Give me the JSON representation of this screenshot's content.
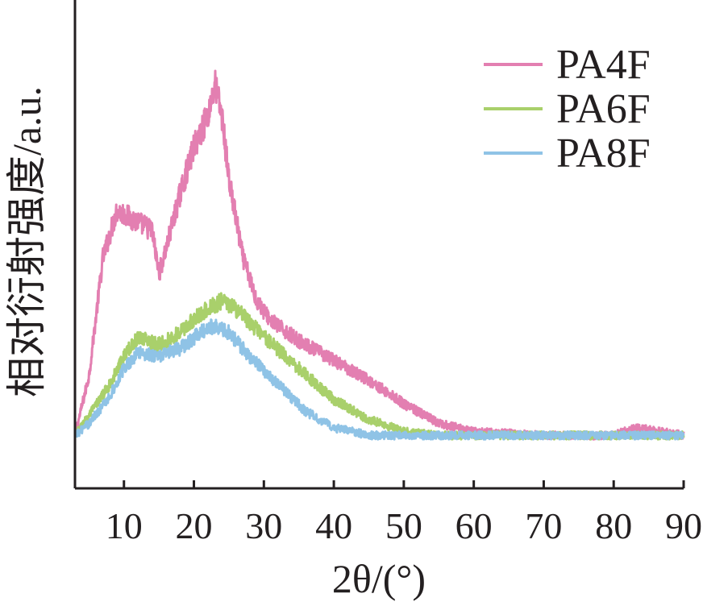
{
  "chart_data": {
    "type": "line",
    "xlabel": "2θ/(°)",
    "ylabel": "相对衍射强度/a.u.",
    "xlim": [
      3,
      90
    ],
    "ylim": [
      0,
      100
    ],
    "x_ticks": [
      10,
      20,
      30,
      40,
      50,
      60,
      70,
      80,
      90
    ],
    "y_ticks": [],
    "grid": false,
    "legend_position": "top-right",
    "series": [
      {
        "name": "PA4F",
        "color": "#e37fb1",
        "points": [
          [
            3,
            3
          ],
          [
            5,
            18
          ],
          [
            7,
            48
          ],
          [
            9,
            60
          ],
          [
            11,
            58
          ],
          [
            13,
            56
          ],
          [
            14,
            55
          ],
          [
            15,
            44
          ],
          [
            16,
            50
          ],
          [
            18,
            64
          ],
          [
            20,
            76
          ],
          [
            22,
            84
          ],
          [
            23,
            92
          ],
          [
            24,
            84
          ],
          [
            25,
            68
          ],
          [
            27,
            48
          ],
          [
            29,
            37
          ],
          [
            31,
            32
          ],
          [
            35,
            27
          ],
          [
            40,
            22
          ],
          [
            45,
            17
          ],
          [
            50,
            11
          ],
          [
            55,
            6
          ],
          [
            60,
            4
          ],
          [
            70,
            3
          ],
          [
            80,
            3
          ],
          [
            83,
            5
          ],
          [
            90,
            3
          ]
        ]
      },
      {
        "name": "PA6F",
        "color": "#a9d06b",
        "points": [
          [
            3,
            3
          ],
          [
            5,
            8
          ],
          [
            8,
            16
          ],
          [
            10,
            23
          ],
          [
            12,
            28
          ],
          [
            15,
            26
          ],
          [
            18,
            29
          ],
          [
            21,
            34
          ],
          [
            24,
            37
          ],
          [
            26,
            35
          ],
          [
            30,
            28
          ],
          [
            35,
            20
          ],
          [
            40,
            12
          ],
          [
            45,
            7
          ],
          [
            50,
            4
          ],
          [
            55,
            3
          ],
          [
            60,
            3
          ],
          [
            70,
            3
          ],
          [
            80,
            3
          ],
          [
            90,
            3
          ]
        ]
      },
      {
        "name": "PA8F",
        "color": "#8fc3e6",
        "points": [
          [
            3,
            3
          ],
          [
            5,
            6
          ],
          [
            8,
            13
          ],
          [
            10,
            20
          ],
          [
            12,
            24
          ],
          [
            15,
            23
          ],
          [
            18,
            25
          ],
          [
            21,
            29
          ],
          [
            23,
            31
          ],
          [
            25,
            29
          ],
          [
            28,
            23
          ],
          [
            32,
            16
          ],
          [
            36,
            9
          ],
          [
            40,
            5
          ],
          [
            45,
            3
          ],
          [
            50,
            3
          ],
          [
            60,
            3
          ],
          [
            70,
            3
          ],
          [
            80,
            3
          ],
          [
            90,
            3
          ]
        ]
      }
    ]
  }
}
